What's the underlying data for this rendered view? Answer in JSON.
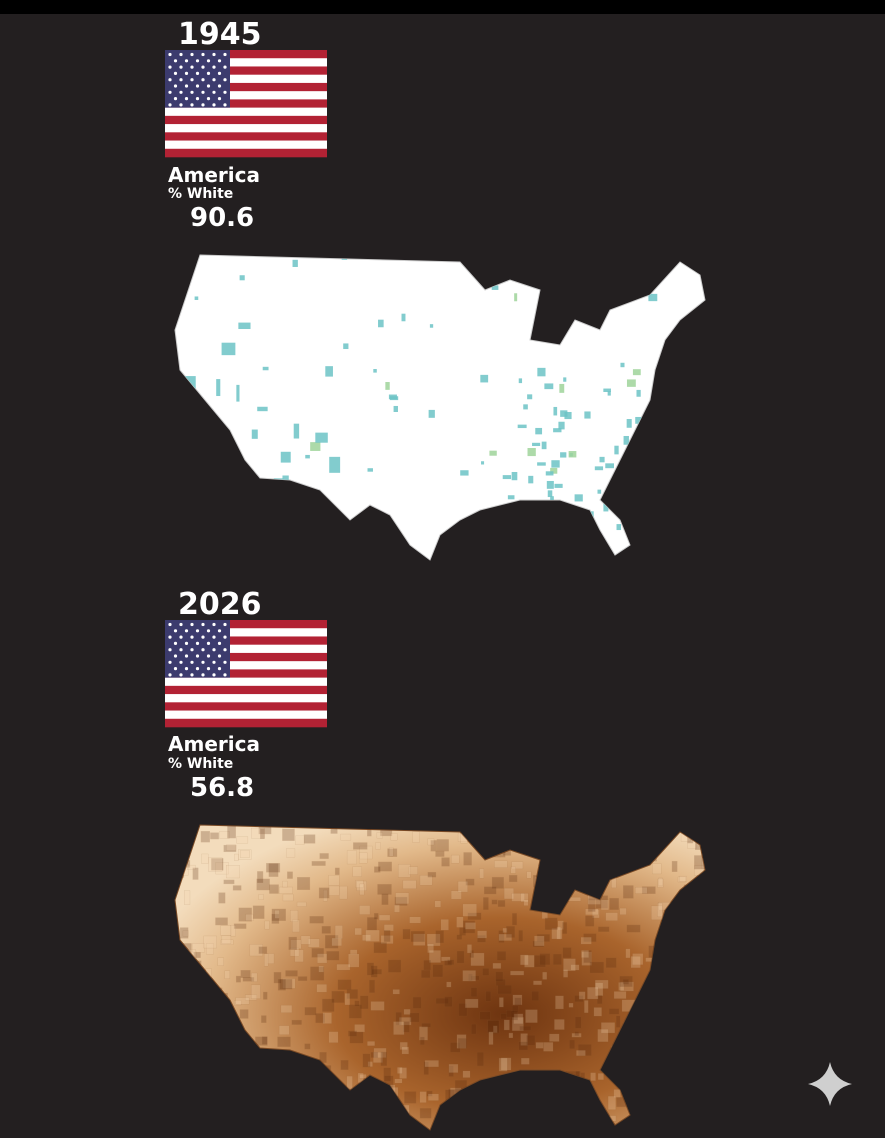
{
  "panels": [
    {
      "year": "1945",
      "country": "America",
      "metric": "% White",
      "value": 90.6
    },
    {
      "year": "2026",
      "country": "America",
      "metric": "% White",
      "value": 56.8
    }
  ]
}
